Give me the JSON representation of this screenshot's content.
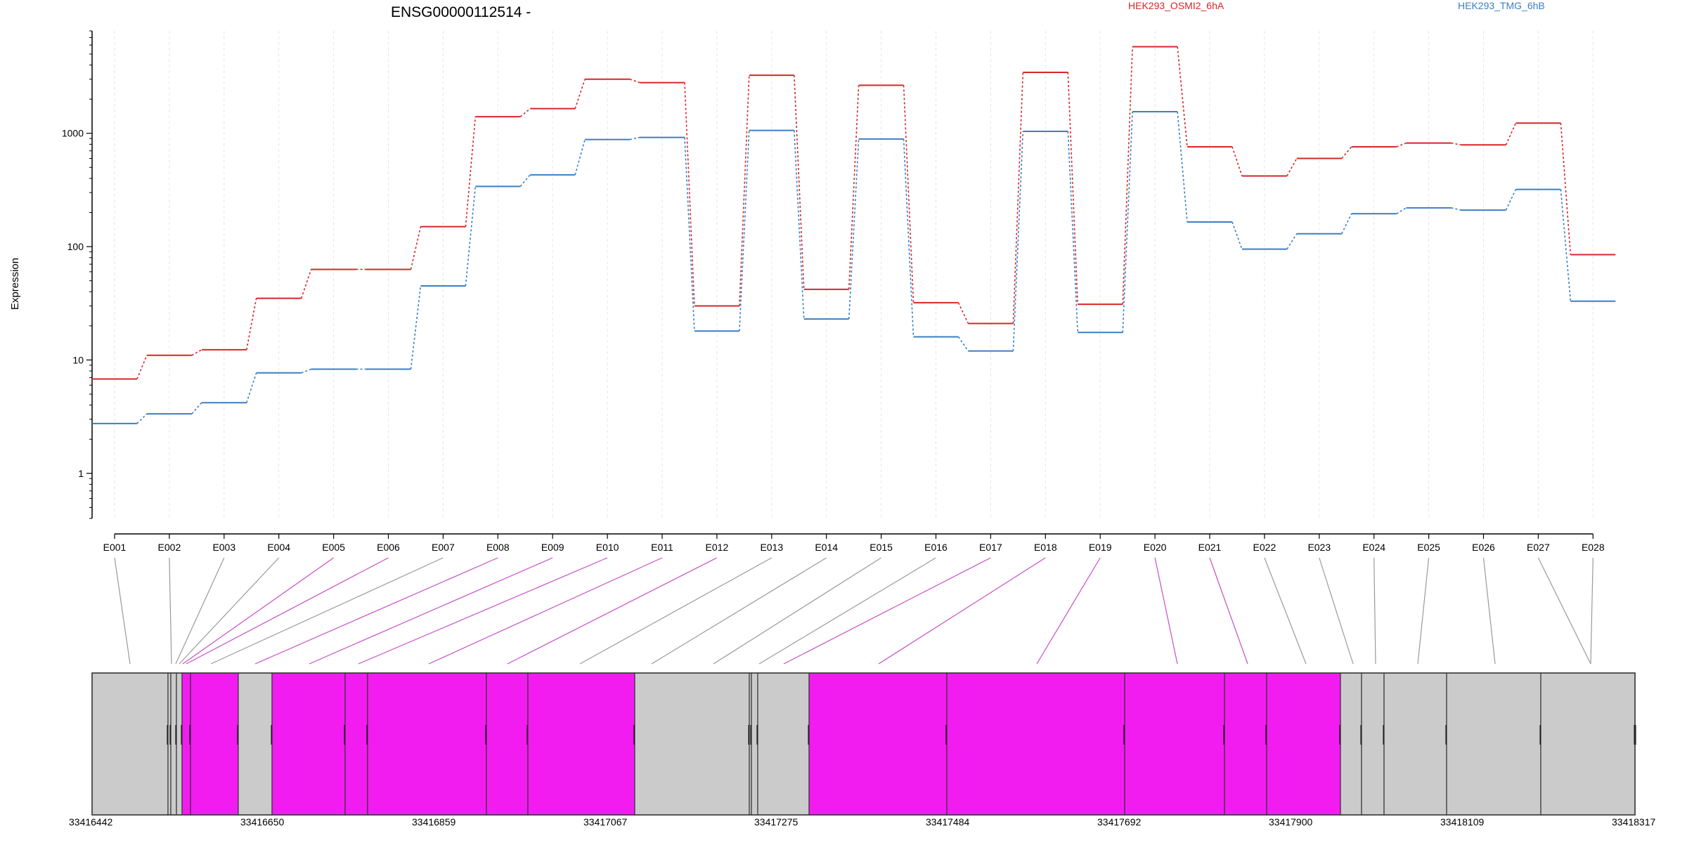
{
  "chart_data": {
    "type": "line",
    "title": "ENSG00000112514 -",
    "ylabel": "Expression",
    "xlabel": "",
    "yscale": "log",
    "ylim": [
      0.4,
      8000
    ],
    "y_ticks": [
      1,
      10,
      100,
      1000
    ],
    "y_tick_labels": [
      "1",
      "10",
      "100",
      "1000"
    ],
    "grid": "vertical-dashed",
    "legend_placement": "top-right",
    "categories": [
      "E001",
      "E002",
      "E003",
      "E004",
      "E005",
      "E006",
      "E007",
      "E008",
      "E009",
      "E010",
      "E011",
      "E012",
      "E013",
      "E014",
      "E015",
      "E016",
      "E017",
      "E018",
      "E019",
      "E020",
      "E021",
      "E022",
      "E023",
      "E024",
      "E025",
      "E026",
      "E027",
      "E028"
    ],
    "series": [
      {
        "name": "HEK293_OSMI2_6hA",
        "color": "#d62728",
        "values": [
          6.8,
          11,
          12.3,
          35,
          63,
          63,
          150,
          1400,
          1650,
          3000,
          2800,
          30,
          3250,
          42,
          2650,
          32,
          21,
          3450,
          31,
          5800,
          760,
          420,
          600,
          760,
          820,
          790,
          1230,
          85
        ]
      },
      {
        "name": "HEK293_TMG_6hB",
        "color": "#3a7fc1",
        "values": [
          2.75,
          3.35,
          4.2,
          7.7,
          8.3,
          8.3,
          45,
          340,
          430,
          880,
          920,
          18,
          1060,
          23,
          890,
          16,
          12,
          1040,
          17.5,
          1550,
          165,
          95,
          130,
          195,
          220,
          210,
          320,
          33
        ]
      }
    ],
    "gene_model": {
      "coordinate_labels": [
        "33416442",
        "33416650",
        "33416859",
        "33417067",
        "33417275",
        "33417484",
        "33417692",
        "33417900",
        "33418109",
        "33418317"
      ],
      "exon_colors": [
        "gray",
        "gray",
        "gray",
        "gray",
        "magenta",
        "magenta",
        "gray",
        "magenta",
        "magenta",
        "magenta",
        "magenta",
        "magenta",
        "gray",
        "gray",
        "gray",
        "gray",
        "magenta",
        "magenta",
        "magenta",
        "magenta",
        "magenta",
        "gray",
        "gray",
        "gray",
        "gray",
        "gray",
        "gray",
        "gray"
      ],
      "palette": {
        "gray": "#cbcbcb",
        "magenta": "#f21cf0",
        "outline": "#333333"
      }
    }
  }
}
